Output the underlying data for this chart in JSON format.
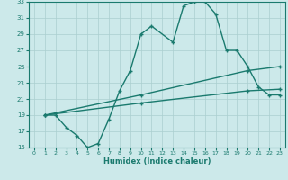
{
  "xlabel": "Humidex (Indice chaleur)",
  "line1_x": [
    1,
    2,
    3,
    4,
    5,
    6,
    7,
    8,
    9,
    10,
    11,
    13,
    14,
    15,
    16,
    17,
    18,
    19,
    20,
    21,
    22,
    23
  ],
  "line1_y": [
    19,
    19,
    17.5,
    16.5,
    15,
    15.5,
    18.5,
    22.0,
    24.5,
    29,
    30,
    28,
    32.5,
    33,
    33,
    31.5,
    27,
    27,
    25,
    22.5,
    21.5,
    21.5
  ],
  "line2_x": [
    1,
    10,
    20,
    23
  ],
  "line2_y": [
    19,
    20.5,
    22.0,
    22.2
  ],
  "line3_x": [
    1,
    10,
    20,
    23
  ],
  "line3_y": [
    19,
    21.5,
    24.5,
    25.0
  ],
  "line_color": "#1a7a6e",
  "bg_color": "#cce9ea",
  "grid_color": "#aacfcf",
  "xlim": [
    -0.5,
    23.5
  ],
  "ylim": [
    15,
    33
  ],
  "xticks": [
    0,
    1,
    2,
    3,
    4,
    5,
    6,
    7,
    8,
    9,
    10,
    11,
    12,
    13,
    14,
    15,
    16,
    17,
    18,
    19,
    20,
    21,
    22,
    23
  ],
  "yticks": [
    15,
    17,
    19,
    21,
    23,
    25,
    27,
    29,
    31,
    33
  ],
  "marker": "+"
}
